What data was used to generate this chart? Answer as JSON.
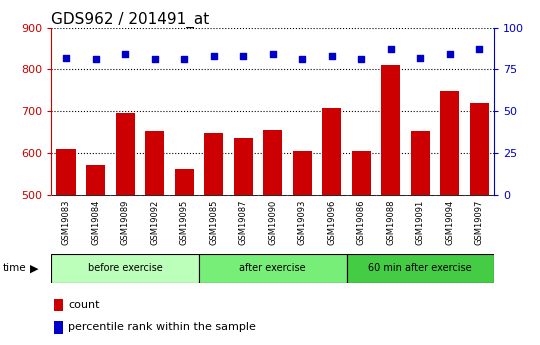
{
  "title": "GDS962 / 201491_at",
  "samples": [
    "GSM19083",
    "GSM19084",
    "GSM19089",
    "GSM19092",
    "GSM19095",
    "GSM19085",
    "GSM19087",
    "GSM19090",
    "GSM19093",
    "GSM19096",
    "GSM19086",
    "GSM19088",
    "GSM19091",
    "GSM19094",
    "GSM19097"
  ],
  "counts": [
    610,
    572,
    695,
    653,
    562,
    648,
    635,
    656,
    606,
    707,
    606,
    810,
    652,
    748,
    720
  ],
  "percentile_ranks": [
    82,
    81,
    84,
    81,
    81,
    83,
    83,
    84,
    81,
    83,
    81,
    87,
    82,
    84,
    87
  ],
  "groups": [
    {
      "label": "before exercise",
      "start": 0,
      "end": 5,
      "color": "#bbffbb"
    },
    {
      "label": "after exercise",
      "start": 5,
      "end": 10,
      "color": "#77ee77"
    },
    {
      "label": "60 min after exercise",
      "start": 10,
      "end": 15,
      "color": "#44cc44"
    }
  ],
  "ylim_left": [
    500,
    900
  ],
  "ylim_right": [
    0,
    100
  ],
  "yticks_left": [
    500,
    600,
    700,
    800,
    900
  ],
  "yticks_right": [
    0,
    25,
    50,
    75,
    100
  ],
  "bar_color": "#cc0000",
  "scatter_color": "#0000cc",
  "grid_color": "#000000",
  "bg_color": "#ffffff",
  "tick_area_color": "#c8c8c8",
  "left_tick_color": "#cc0000",
  "right_tick_color": "#0000cc",
  "title_fontsize": 11,
  "legend_fontsize": 8,
  "axis_label_fontsize": 8
}
